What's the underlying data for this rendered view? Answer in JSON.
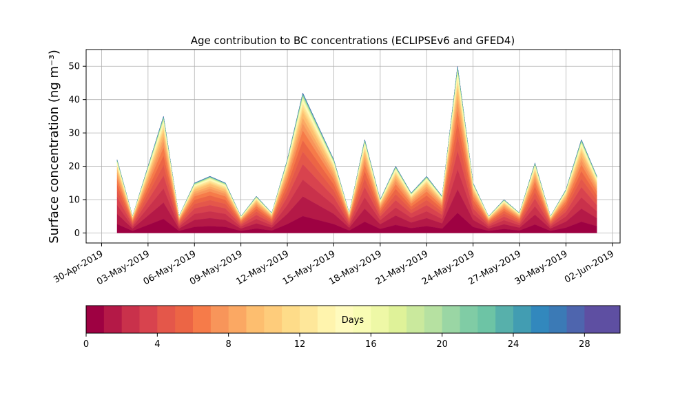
{
  "chart_data": {
    "type": "area",
    "stacked": true,
    "title": "Age contribution to BC concentrations (ECLIPSEv6 and GFED4)",
    "ylabel": "Surface concentration (ng m⁻³)",
    "xlabel": "",
    "x_ticks": [
      "30-Apr-2019",
      "03-May-2019",
      "06-May-2019",
      "09-May-2019",
      "12-May-2019",
      "15-May-2019",
      "18-May-2019",
      "21-May-2019",
      "24-May-2019",
      "27-May-2019",
      "30-May-2019",
      "02-Jun-2019"
    ],
    "y_ticks": [
      0,
      10,
      20,
      30,
      40,
      50
    ],
    "ylim": [
      -3,
      55
    ],
    "grid": true,
    "x_dates": [
      "2019-05-01",
      "2019-05-02",
      "2019-05-03",
      "2019-05-04",
      "2019-05-05",
      "2019-05-06",
      "2019-05-07",
      "2019-05-08",
      "2019-05-09",
      "2019-05-10",
      "2019-05-11",
      "2019-05-12",
      "2019-05-13",
      "2019-05-14",
      "2019-05-15",
      "2019-05-16",
      "2019-05-17",
      "2019-05-18",
      "2019-05-19",
      "2019-05-20",
      "2019-05-21",
      "2019-05-22",
      "2019-05-23",
      "2019-05-24",
      "2019-05-25",
      "2019-05-26",
      "2019-05-27",
      "2019-05-28",
      "2019-05-29",
      "2019-05-30",
      "2019-05-31",
      "2019-06-01"
    ],
    "total": [
      22,
      5,
      20,
      35,
      5,
      15,
      17,
      15,
      5,
      11,
      6,
      22,
      42,
      32,
      22,
      6,
      28,
      10,
      20,
      12,
      17,
      11,
      50,
      15,
      5,
      10,
      6,
      21,
      5,
      13,
      28,
      17
    ],
    "age_fraction_curve": [
      0.12,
      0.26,
      0.38,
      0.49,
      0.58,
      0.66,
      0.73,
      0.78,
      0.82,
      0.86,
      0.88,
      0.9,
      0.92,
      0.93,
      0.94,
      0.95,
      0.96,
      0.965,
      0.97,
      0.975,
      0.98,
      0.984,
      0.987,
      0.99,
      0.992,
      0.994,
      0.996,
      0.998,
      0.999,
      1.0
    ],
    "colorbar": {
      "label": "Days",
      "min": 0,
      "max": 30,
      "ticks": [
        0,
        4,
        8,
        12,
        16,
        20,
        24,
        28
      ],
      "colors": [
        "#9e0142",
        "#b41947",
        "#c9314b",
        "#d8434e",
        "#e4574a",
        "#ec6545",
        "#f67b49",
        "#f8955a",
        "#fba863",
        "#fdbe6f",
        "#fecc7b",
        "#fedc89",
        "#fee79a",
        "#fff4ad",
        "#fffbbe",
        "#f9fcb4",
        "#eef8a6",
        "#dff299",
        "#cae99d",
        "#b6e1a1",
        "#9ad6a4",
        "#80cca5",
        "#6dc4a5",
        "#57b0ab",
        "#429db2",
        "#3288bd",
        "#3b7ab6",
        "#4e65ae",
        "#5e4fa2",
        "#5e4fa2"
      ]
    }
  }
}
